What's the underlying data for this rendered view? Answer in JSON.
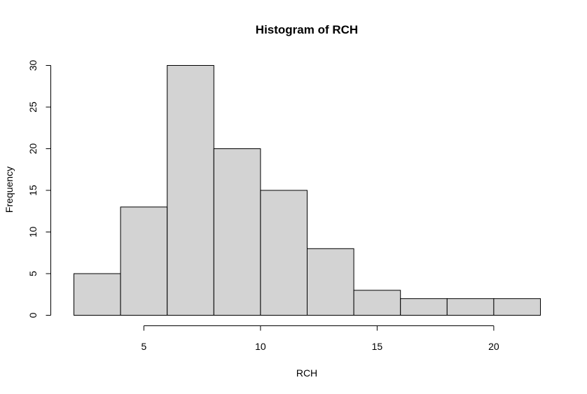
{
  "chart_data": {
    "type": "bar",
    "title": "Histogram of RCH",
    "xlabel": "RCH",
    "ylabel": "Frequency",
    "bin_edges": [
      2,
      4,
      6,
      8,
      10,
      12,
      14,
      16,
      18,
      20,
      22
    ],
    "values": [
      5,
      13,
      30,
      20,
      15,
      8,
      3,
      2,
      2,
      2
    ],
    "xlim": [
      2,
      22
    ],
    "ylim": [
      0,
      30
    ],
    "x_ticks": [
      5,
      10,
      15,
      20
    ],
    "y_ticks": [
      0,
      5,
      10,
      15,
      20,
      25,
      30
    ],
    "bar_color": "#d3d3d3",
    "grid": false,
    "legend": "none"
  }
}
